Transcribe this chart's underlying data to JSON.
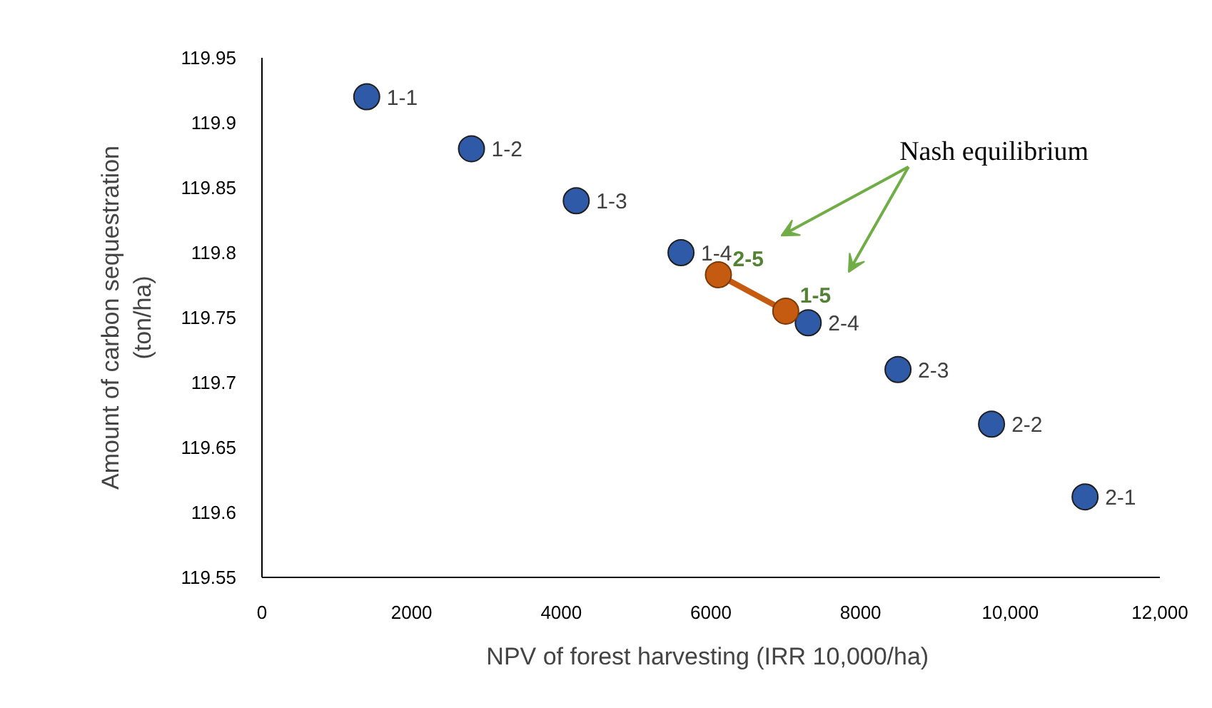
{
  "chart_data": {
    "type": "scatter",
    "xlabel": "NPV of forest harvesting  (IRR 10,000/ha)",
    "ylabel": "Amount of carbon sequestration\n(ton/ha)",
    "series": [
      {
        "color": "#2e5aa8",
        "x": [
          1400,
          2800,
          4200,
          5600,
          7300,
          8500,
          9750,
          11000
        ],
        "values": [
          119.92,
          119.88,
          119.84,
          119.8,
          119.746,
          119.71,
          119.668,
          119.612
        ],
        "value_labels": [
          "1-1",
          "1-2",
          "1-3",
          "1-4",
          "2-4",
          "2-3",
          "2-2",
          "2-1"
        ]
      },
      {
        "type": "line",
        "color": "#c55a11",
        "x": [
          6100,
          7000
        ],
        "values": [
          119.783,
          119.755
        ],
        "value_labels": [
          "2-5",
          "1-5"
        ]
      }
    ],
    "annotations": [
      "Nash equilibrium"
    ],
    "xlim": [
      0,
      12000
    ],
    "xticks": [
      0,
      2000,
      4000,
      6000,
      8000,
      {
        "value": 10000,
        "label": "10,000"
      },
      {
        "value": 12000,
        "label": "12,000"
      }
    ],
    "ylim": [
      119.55,
      119.95
    ],
    "yticks": [
      119.55,
      119.6,
      119.65,
      119.7,
      119.75,
      119.8,
      119.85,
      119.9,
      119.95
    ],
    "marker": "circle",
    "grid": false
  }
}
